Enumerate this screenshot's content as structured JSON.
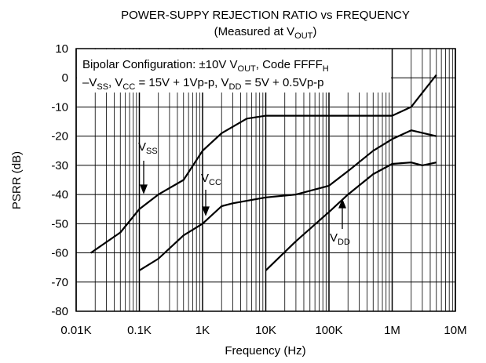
{
  "chart_data": {
    "type": "line",
    "title": "POWER-SUPPY REJECTION RATIO vs FREQUENCY",
    "subtitle": [
      "(Measured at V",
      "OUT",
      ")"
    ],
    "note_lines": [
      [
        "Bipolar Configuration: ±10V V",
        "OUT",
        ", Code FFFF",
        "H"
      ],
      [
        "–V",
        "SS",
        ", V",
        "CC",
        " = 15V + 1Vp-p, V",
        "DD",
        " = 5V + 0.5Vp-p"
      ]
    ],
    "x_label": "Frequency (Hz)",
    "y_label": "PSRR (dB)",
    "x_log": true,
    "grid": true,
    "xlim": [
      10,
      10000000
    ],
    "xticks": [
      {
        "value": 10,
        "label": "0.01K"
      },
      {
        "value": 100,
        "label": "0.1K"
      },
      {
        "value": 1000,
        "label": "1K"
      },
      {
        "value": 10000,
        "label": "10K"
      },
      {
        "value": 100000,
        "label": "100K"
      },
      {
        "value": 1000000,
        "label": "1M"
      },
      {
        "value": 10000000,
        "label": "10M"
      }
    ],
    "ylim": [
      -80,
      10
    ],
    "yticks": [
      -80,
      -70,
      -60,
      -50,
      -40,
      -30,
      -20,
      -10,
      0,
      10
    ],
    "series": [
      {
        "name": [
          "V",
          "SS"
        ],
        "color": "#000000",
        "x": [
          17,
          50,
          100,
          200,
          500,
          1000,
          2000,
          5000,
          10000,
          1000000,
          2000000,
          5000000
        ],
        "values": [
          -60,
          -53,
          -45,
          -40,
          -35,
          -25,
          -19,
          -14,
          -13,
          -13,
          -10,
          1
        ]
      },
      {
        "name": [
          "V",
          "CC"
        ],
        "color": "#000000",
        "x": [
          100,
          200,
          500,
          1000,
          2000,
          3000,
          10000,
          30000,
          100000,
          200000,
          500000,
          1000000,
          2000000,
          5000000
        ],
        "values": [
          -66,
          -62,
          -54,
          -50,
          -44,
          -43,
          -41,
          -40,
          -37,
          -32,
          -25,
          -21,
          -18,
          -20
        ]
      },
      {
        "name": [
          "V",
          "DD"
        ],
        "color": "#000000",
        "x": [
          10000,
          30000,
          100000,
          200000,
          500000,
          1000000,
          2000000,
          3000000,
          5000000
        ],
        "values": [
          -66,
          -56,
          -46,
          -40,
          -33,
          -29.5,
          -29,
          -30,
          -29
        ]
      }
    ]
  }
}
